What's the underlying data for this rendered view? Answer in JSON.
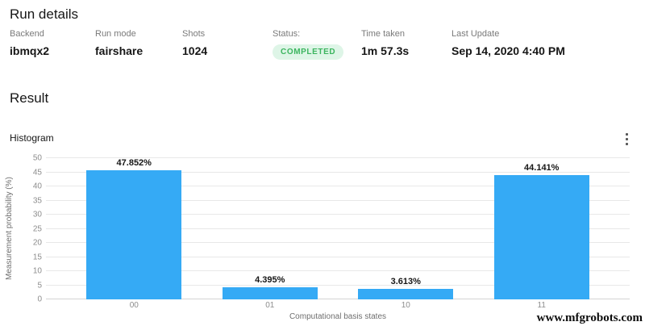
{
  "page": {
    "title": "Run details"
  },
  "run_details": {
    "fields": [
      {
        "label": "Backend",
        "value": "ibmqx2"
      },
      {
        "label": "Run mode",
        "value": "fairshare"
      },
      {
        "label": "Shots",
        "value": "1024"
      },
      {
        "label": "Status:",
        "value": "COMPLETED",
        "type": "badge"
      },
      {
        "label": "Time taken",
        "value": "1m 57.3s"
      },
      {
        "label": "Last Update",
        "value": "Sep 14, 2020 4:40 PM"
      }
    ]
  },
  "result": {
    "section_title": "Result",
    "chart_title": "Histogram",
    "overflow_menu_icon": "kebab-vertical-icon"
  },
  "chart_data": {
    "type": "bar",
    "title": "Histogram",
    "categories": [
      "00",
      "01",
      "10",
      "11"
    ],
    "values": [
      47.852,
      4.395,
      3.613,
      44.141
    ],
    "value_labels": [
      "47.852%",
      "4.395%",
      "3.613%",
      "44.141%"
    ],
    "xlabel": "Computational basis states",
    "ylabel": "Measurement probability (%)",
    "ylim": [
      0,
      50
    ],
    "ytick_step": 5,
    "grid": true,
    "legend": "none",
    "bar_color": "#35aaf5"
  },
  "colors": {
    "status_badge_bg": "#def5e7",
    "status_badge_text": "#3cb55f",
    "gridline": "#e8e8e8",
    "axis_text": "#8d8d8d",
    "bar": "#35aaf5"
  },
  "watermark": "www.mfgrobots.com"
}
